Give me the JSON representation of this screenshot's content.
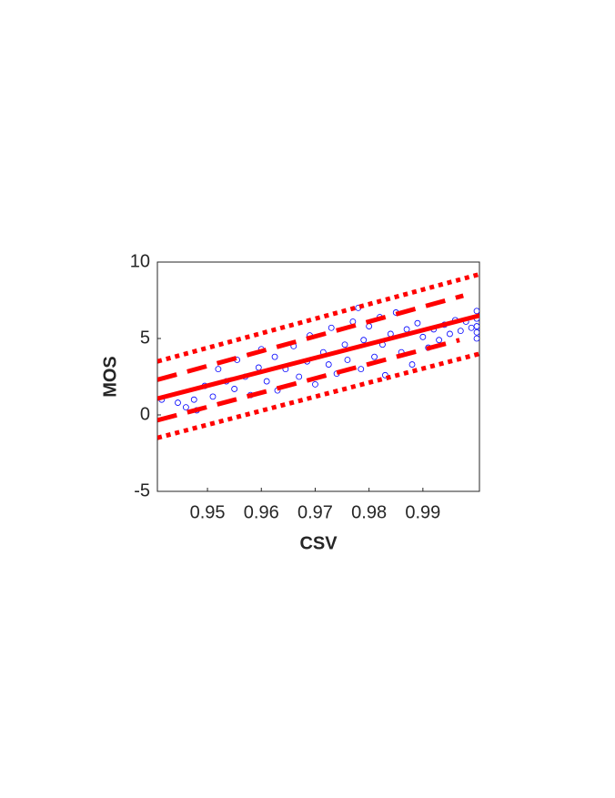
{
  "chart_data": {
    "type": "scatter",
    "xlabel": "CSV",
    "ylabel": "MOS",
    "xlim": [
      0.9407,
      1.0005
    ],
    "ylim": [
      -5,
      10
    ],
    "xticks": [
      0.95,
      0.96,
      0.97,
      0.98,
      0.99
    ],
    "yticks": [
      -5,
      0,
      5,
      10
    ],
    "marker_color": "#0000ff",
    "x": [
      0.9415,
      0.9445,
      0.946,
      0.9475,
      0.948,
      0.9495,
      0.951,
      0.952,
      0.9535,
      0.955,
      0.9555,
      0.957,
      0.958,
      0.9595,
      0.96,
      0.961,
      0.9625,
      0.963,
      0.9645,
      0.966,
      0.967,
      0.9685,
      0.969,
      0.97,
      0.9715,
      0.9725,
      0.973,
      0.974,
      0.9755,
      0.976,
      0.977,
      0.978,
      0.9785,
      0.979,
      0.98,
      0.981,
      0.982,
      0.9825,
      0.983,
      0.984,
      0.985,
      0.986,
      0.987,
      0.988,
      0.989,
      0.99,
      0.991,
      0.992,
      0.993,
      0.994,
      0.995,
      0.996,
      0.997,
      0.998,
      0.999,
      1.0,
      1.0,
      1.0,
      1.0,
      1.0
    ],
    "values": [
      1.0,
      0.8,
      0.5,
      1.0,
      0.3,
      1.9,
      1.2,
      3.0,
      2.2,
      1.7,
      3.6,
      2.5,
      1.3,
      3.1,
      4.3,
      2.2,
      3.8,
      1.6,
      3.0,
      4.5,
      2.5,
      3.5,
      5.2,
      2.0,
      4.1,
      3.3,
      5.7,
      2.7,
      4.6,
      3.6,
      6.1,
      7.0,
      3.0,
      4.9,
      5.8,
      3.8,
      6.4,
      4.6,
      2.6,
      5.3,
      6.7,
      4.1,
      5.6,
      3.3,
      6.0,
      5.1,
      4.4,
      5.6,
      4.9,
      5.9,
      5.3,
      6.2,
      5.5,
      6.1,
      5.7,
      6.8,
      6.3,
      5.8,
      5.4,
      5.0
    ],
    "lines": [
      {
        "style": "solid",
        "color": "#ff0000",
        "x": [
          0.9407,
          1.0005
        ],
        "values": [
          1.07,
          6.5
        ]
      },
      {
        "style": "dashed",
        "color": "#ff0000",
        "x": [
          0.9407,
          0.9975
        ],
        "values": [
          2.3,
          7.8
        ]
      },
      {
        "style": "dashed",
        "color": "#ff0000",
        "x": [
          0.9407,
          0.9968
        ],
        "values": [
          -0.35,
          4.9
        ]
      },
      {
        "style": "dotted",
        "color": "#ff0000",
        "x": [
          0.9407,
          1.0005
        ],
        "values": [
          3.5,
          9.2
        ]
      },
      {
        "style": "dotted",
        "color": "#ff0000",
        "x": [
          0.9407,
          1.0005
        ],
        "values": [
          -1.5,
          4.0
        ]
      }
    ]
  }
}
